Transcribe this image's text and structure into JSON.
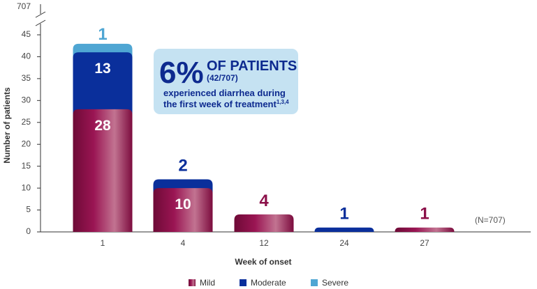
{
  "chart_data": {
    "type": "bar",
    "stacked": true,
    "categories": [
      "1",
      "4",
      "12",
      "24",
      "27"
    ],
    "series": [
      {
        "name": "Mild",
        "values": [
          28,
          10,
          4,
          0,
          1
        ],
        "color": "#8b1049"
      },
      {
        "name": "Moderate",
        "values": [
          13,
          2,
          0,
          1,
          0
        ],
        "color": "#0a2f9b"
      },
      {
        "name": "Severe",
        "values": [
          1,
          0,
          0,
          0,
          0
        ],
        "color": "#4fa6d3"
      }
    ],
    "totals": [
      42,
      12,
      4,
      1,
      1
    ],
    "xlabel": "Week of onset",
    "ylabel": "Number of patients",
    "yticks": [
      0,
      5,
      10,
      15,
      20,
      25,
      30,
      35,
      40,
      45
    ],
    "ylim": [
      0,
      45
    ],
    "axis_break_value": "707",
    "grid": false,
    "legend_position": "bottom-center",
    "annotation": {
      "percent": "6%",
      "headline": "OF PATIENTS",
      "fraction": "(42/707)",
      "line1": "experienced diarrhea during",
      "line2": "the first week of treatment",
      "superscript": "1,3,4"
    },
    "n_label": "(N=707)"
  }
}
